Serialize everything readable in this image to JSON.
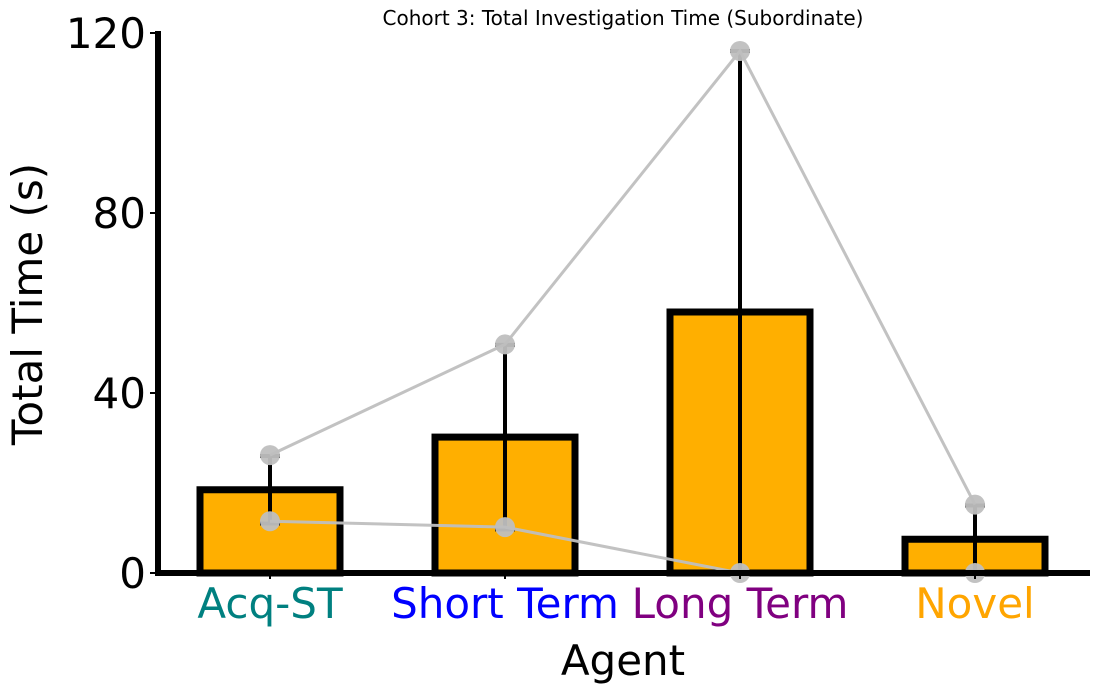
{
  "chart_data": {
    "type": "bar",
    "title": "Cohort 3: Total Investigation Time (Subordinate)",
    "xlabel": "Agent",
    "ylabel": "Total Time (s)",
    "categories": [
      "Acq-ST",
      "Short Term",
      "Long Term",
      "Novel"
    ],
    "category_colors": [
      "#008080",
      "#0000ff",
      "#800080",
      "#ffa500"
    ],
    "values": [
      18.5,
      30.2,
      58.0,
      7.5
    ],
    "error": [
      7.5,
      20.5,
      58.0,
      7.5
    ],
    "bar_color": "#ffaf00",
    "edge_color": "#000000",
    "ylim": [
      0,
      120
    ],
    "yticks": [
      0,
      40,
      80,
      120
    ],
    "individual_series": [
      {
        "values": [
          26.2,
          50.8,
          116.0,
          15.2
        ],
        "color": "#bfbfbf"
      },
      {
        "values": [
          11.5,
          10.2,
          0.0,
          0.0
        ],
        "color": "#bfbfbf"
      }
    ],
    "grid": false,
    "legend": "none"
  }
}
